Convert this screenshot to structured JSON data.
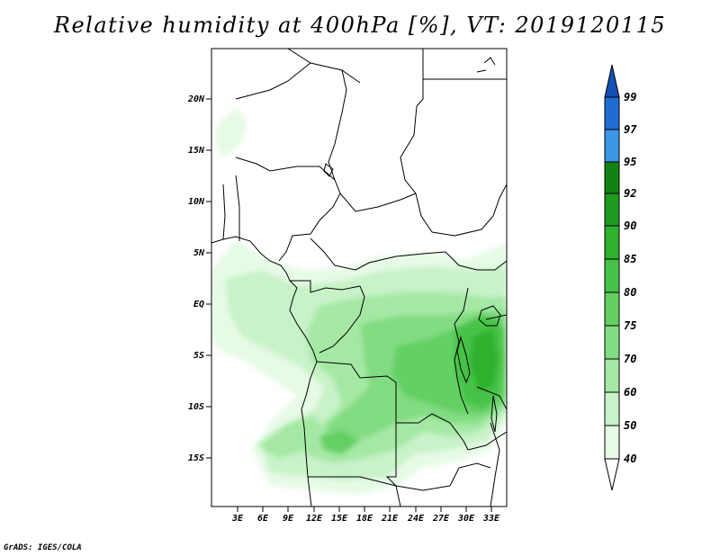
{
  "title": "Relative humidity at 400hPa [%], VT: 2019120115",
  "footer": "GrADS: IGES/COLA",
  "map": {
    "lat_labels": [
      "20N",
      "15N",
      "10N",
      "5N",
      "EQ",
      "5S",
      "10S",
      "15S"
    ],
    "lon_labels": [
      "3E",
      "6E",
      "9E",
      "12E",
      "15E",
      "18E",
      "21E",
      "24E",
      "27E",
      "30E",
      "33E"
    ]
  },
  "colorbar": {
    "levels": [
      "40",
      "50",
      "60",
      "70",
      "75",
      "80",
      "85",
      "90",
      "92",
      "95",
      "97",
      "99"
    ],
    "colors": [
      "#ffffff",
      "#e6fae6",
      "#c8f2c8",
      "#a4e8a4",
      "#82dc82",
      "#64d064",
      "#46c246",
      "#2eb22e",
      "#1e9a1e",
      "#128312",
      "#3c96e6",
      "#1e6ed2",
      "#1450b4"
    ]
  }
}
